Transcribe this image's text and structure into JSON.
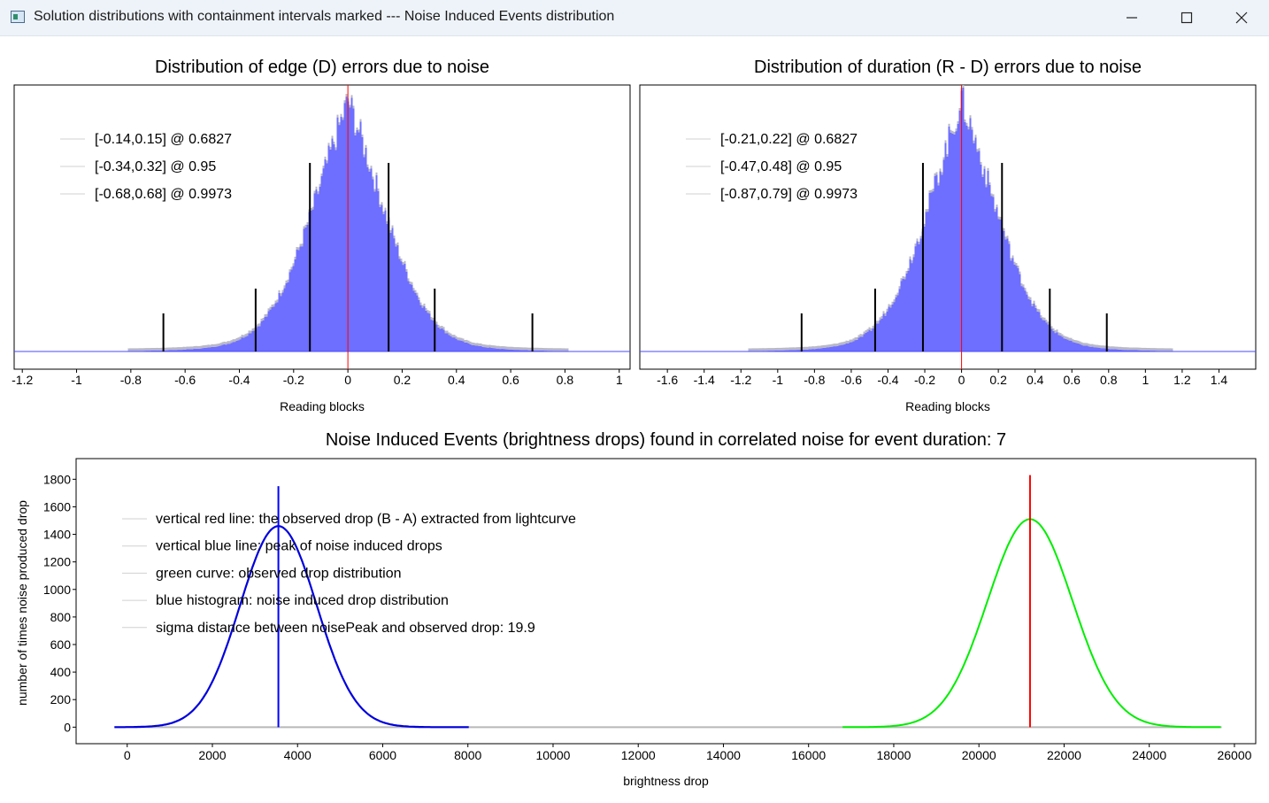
{
  "window": {
    "title": "Solution distributions with containment intervals marked --- Noise Induced Events distribution"
  },
  "chart_data": [
    {
      "type": "bar",
      "title": "Distribution of edge (D) errors due to noise",
      "xlabel": "Reading blocks",
      "xlim": [
        -1.23,
        1.04
      ],
      "xticks": [
        -1.2,
        -1,
        -0.8,
        -0.6,
        -0.4,
        -0.2,
        0,
        0.2,
        0.4,
        0.6,
        0.8,
        1
      ],
      "histogram": {
        "center": 0.0,
        "sigma": 0.155,
        "color": "#6666ff"
      },
      "reference_line": {
        "x": 0,
        "color": "#ff0000"
      },
      "intervals": [
        {
          "label": "[-0.14,0.15] @ 0.6827",
          "lo": -0.14,
          "hi": 0.15,
          "confidence": 0.6827
        },
        {
          "label": "[-0.34,0.32] @ 0.95",
          "lo": -0.34,
          "hi": 0.32,
          "confidence": 0.95
        },
        {
          "label": "[-0.68,0.68] @ 0.9973",
          "lo": -0.68,
          "hi": 0.68,
          "confidence": 0.9973
        }
      ],
      "legend_position": "top-left",
      "grid": false
    },
    {
      "type": "bar",
      "title": "Distribution of duration (R - D) errors due to noise",
      "xlabel": "Reading blocks",
      "xlim": [
        -1.75,
        1.6
      ],
      "xticks": [
        -1.6,
        -1.4,
        -1.2,
        -1,
        -0.8,
        -0.6,
        -0.4,
        -0.2,
        0,
        0.2,
        0.4,
        0.6,
        0.8,
        1,
        1.2,
        1.4
      ],
      "histogram": {
        "center": 0.0,
        "sigma": 0.22,
        "color": "#6666ff"
      },
      "reference_line": {
        "x": 0,
        "color": "#ff0000"
      },
      "intervals": [
        {
          "label": "[-0.21,0.22] @ 0.6827",
          "lo": -0.21,
          "hi": 0.22,
          "confidence": 0.6827
        },
        {
          "label": "[-0.47,0.48] @ 0.95",
          "lo": -0.47,
          "hi": 0.48,
          "confidence": 0.95
        },
        {
          "label": "[-0.87,0.79] @ 0.9973",
          "lo": -0.87,
          "hi": 0.79,
          "confidence": 0.9973
        }
      ],
      "legend_position": "top-left",
      "grid": false
    },
    {
      "type": "line",
      "title": "Noise Induced Events (brightness drops) found in correlated noise for event duration: 7",
      "xlabel": "brightness drop",
      "ylabel": "number of times noise produced drop",
      "xlim": [
        -1200,
        26500
      ],
      "ylim": [
        -120,
        1950
      ],
      "xticks": [
        0,
        2000,
        4000,
        6000,
        8000,
        10000,
        12000,
        14000,
        16000,
        18000,
        20000,
        22000,
        24000,
        26000
      ],
      "yticks": [
        0,
        200,
        400,
        600,
        800,
        1000,
        1200,
        1400,
        1600,
        1800
      ],
      "series": [
        {
          "name": "blue histogram: noise induced drop distribution",
          "color": "#0000dd",
          "center": 3550,
          "sigma": 900,
          "peak": 1460,
          "x_range": [
            -300,
            8050
          ]
        },
        {
          "name": "green curve: observed drop distribution",
          "color": "#00ee00",
          "center": 21200,
          "sigma": 1000,
          "peak": 1510,
          "x_range": [
            16800,
            25700
          ]
        }
      ],
      "vertical_lines": [
        {
          "name": "noise peak",
          "x": 3550,
          "y_top": 1750,
          "color": "#0000ff"
        },
        {
          "name": "observed drop",
          "x": 21200,
          "y_top": 1830,
          "color": "#ff0000"
        }
      ],
      "legend": [
        "vertical red line: the observed drop (B - A) extracted from lightcurve",
        "vertical blue line: peak of noise induced drops",
        "green curve: observed drop distribution",
        "blue histogram: noise induced drop distribution",
        "sigma distance between noisePeak and observed drop: 19.9"
      ],
      "legend_position": "top-left",
      "grid": false
    }
  ]
}
